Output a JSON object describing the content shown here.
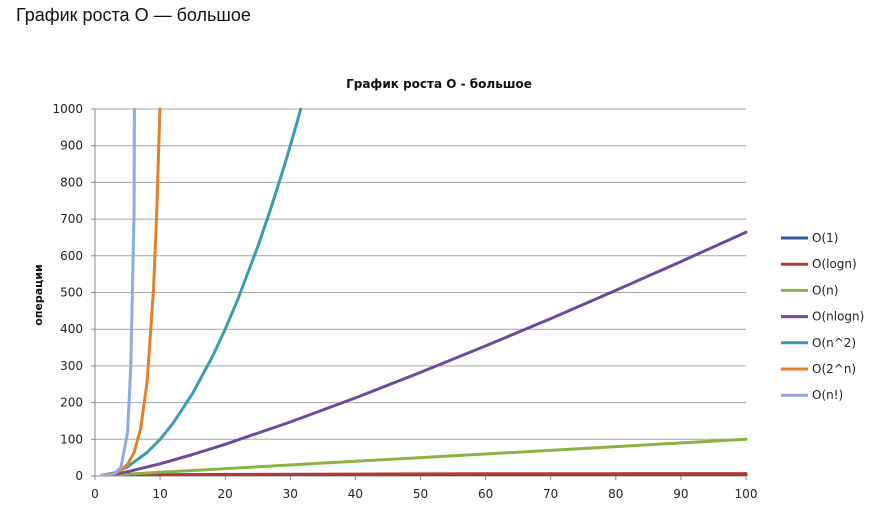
{
  "page": {
    "heading": "График роста O — большое"
  },
  "chart_data": {
    "type": "line",
    "title": "График роста O - большое",
    "xlabel": "",
    "ylabel": "операции",
    "xlim": [
      0,
      100
    ],
    "ylim": [
      0,
      1000
    ],
    "x_ticks": [
      "0",
      "10",
      "20",
      "30",
      "40",
      "50",
      "60",
      "70",
      "80",
      "90",
      "100"
    ],
    "y_ticks": [
      "0",
      "100",
      "200",
      "300",
      "400",
      "500",
      "600",
      "700",
      "800",
      "900",
      "1000"
    ],
    "grid": "horizontal",
    "legend_position": "right",
    "series": [
      {
        "name": "O(1)",
        "color": "#2e5c9a",
        "x": [
          1,
          100
        ],
        "values": [
          1,
          1
        ]
      },
      {
        "name": "O(logn)",
        "color": "#b03a38",
        "x": [
          1,
          10,
          20,
          40,
          60,
          80,
          100
        ],
        "values": [
          0,
          3.3,
          4.3,
          5.3,
          5.9,
          6.3,
          6.6
        ]
      },
      {
        "name": "O(n)",
        "color": "#8db045",
        "x": [
          1,
          100
        ],
        "values": [
          1,
          100
        ]
      },
      {
        "name": "O(nlogn)",
        "color": "#6e4a9a",
        "x": [
          1,
          2,
          3,
          5,
          10,
          15,
          20,
          30,
          40,
          50,
          60,
          70,
          80,
          90,
          100
        ],
        "values": [
          0,
          2,
          4.8,
          11.6,
          33.2,
          58.6,
          86.4,
          147.2,
          212.9,
          282.2,
          354.4,
          429,
          505.8,
          584.3,
          664.4
        ]
      },
      {
        "name": "O(n^2)",
        "color": "#3b9bb2",
        "x": [
          1,
          3,
          5,
          8,
          10,
          12,
          15,
          18,
          20,
          22,
          25,
          27,
          29,
          30,
          31,
          31.6
        ],
        "values": [
          1,
          9,
          25,
          64,
          100,
          144,
          225,
          324,
          400,
          484,
          625,
          729,
          841,
          900,
          961,
          1000
        ]
      },
      {
        "name": "O(2^n)",
        "color": "#e47f2b",
        "x": [
          1,
          2,
          3,
          4,
          5,
          6,
          7,
          8,
          9,
          9.5,
          9.97
        ],
        "values": [
          2,
          4,
          8,
          16,
          32,
          64,
          128,
          256,
          512,
          724,
          1000
        ]
      },
      {
        "name": "O(n!)",
        "color": "#8faadc",
        "x": [
          1,
          2,
          3,
          4,
          5,
          5.5,
          6,
          6.05
        ],
        "values": [
          1,
          2,
          6,
          24,
          120,
          300,
          720,
          1000
        ]
      }
    ]
  }
}
